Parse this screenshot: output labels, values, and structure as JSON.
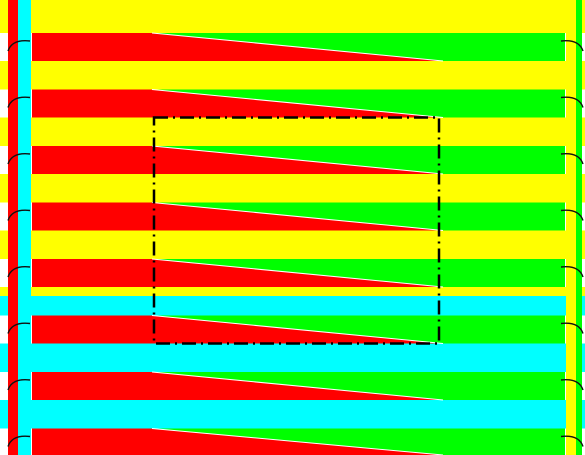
{
  "colors": {
    "background": "#ffffff",
    "red": "#ff0000",
    "cyan": "#00ffff",
    "yellow": "#ffff00",
    "green": "#00ff00",
    "frame": "#000000",
    "hook": "#111111"
  },
  "diagram": {
    "finger_count": 8,
    "interleaved_strip_fill_order": [
      "yellow",
      "yellow",
      "yellow",
      "yellow",
      "cyan",
      "cyan",
      "cyan"
    ],
    "strip_top_colors": [
      "yellow",
      "yellow",
      "yellow",
      "yellow",
      "yellow",
      "cyan",
      "cyan"
    ],
    "left_bus_colors": [
      "red",
      "cyan"
    ],
    "right_bus_colors": [
      "yellow",
      "green"
    ],
    "dashed_outline": {
      "visible": true,
      "style": "dash-dot"
    },
    "hook_icon": "curved-hook-icon"
  }
}
